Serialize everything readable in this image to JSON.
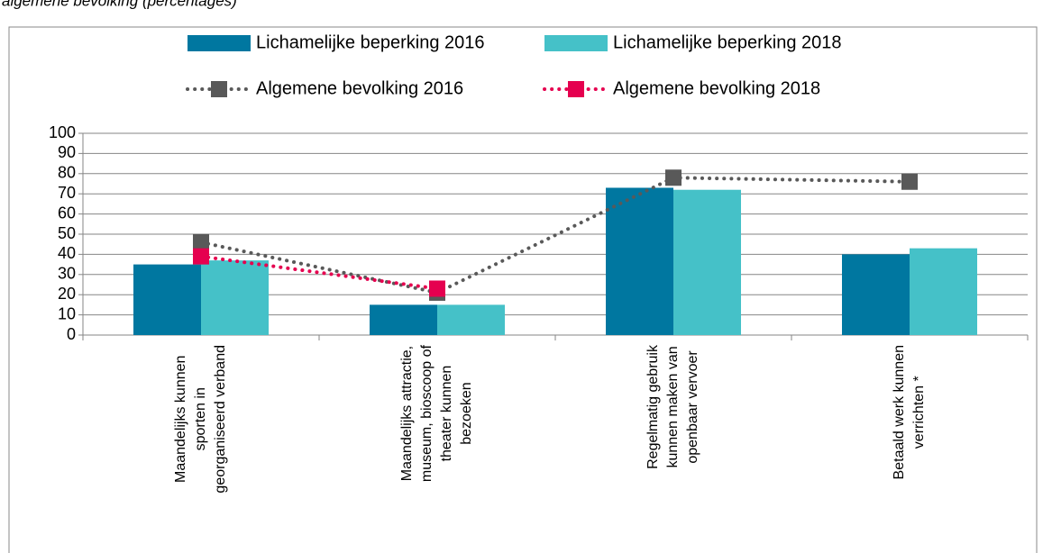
{
  "chart_data": {
    "type": "bar",
    "title": "algemene bevolking (percentages)",
    "categories": [
      [
        "Maandelijks kunnen",
        "sporten in",
        "georganiseerd verband"
      ],
      [
        "Maandelijks attractie,",
        "museum, bioscoop of",
        "theater kunnen",
        "bezoeken"
      ],
      [
        "Regelmatig gebruik",
        "kunnen maken van",
        "openbaar vervoer"
      ],
      [
        "Betaald werk kunnen",
        "verrichten *"
      ]
    ],
    "series": [
      {
        "name": "Lichamelijke beperking 2016",
        "type": "bar",
        "color": "#0077a0",
        "values": [
          35,
          15,
          73,
          40
        ]
      },
      {
        "name": "Lichamelijke beperking 2018",
        "type": "bar",
        "color": "#45c1c8",
        "values": [
          37,
          15,
          72,
          43
        ]
      },
      {
        "name": "Algemene bevolking 2016",
        "type": "line",
        "color": "#595959",
        "values": [
          46,
          21,
          78,
          76
        ]
      },
      {
        "name": "Algemene bevolking 2018",
        "type": "line",
        "color": "#e5004f",
        "values": [
          39,
          23,
          null,
          null
        ]
      }
    ],
    "ylim": [
      0,
      100
    ],
    "yticks": [
      0,
      10,
      20,
      30,
      40,
      50,
      60,
      70,
      80,
      90,
      100
    ],
    "grid": true
  }
}
